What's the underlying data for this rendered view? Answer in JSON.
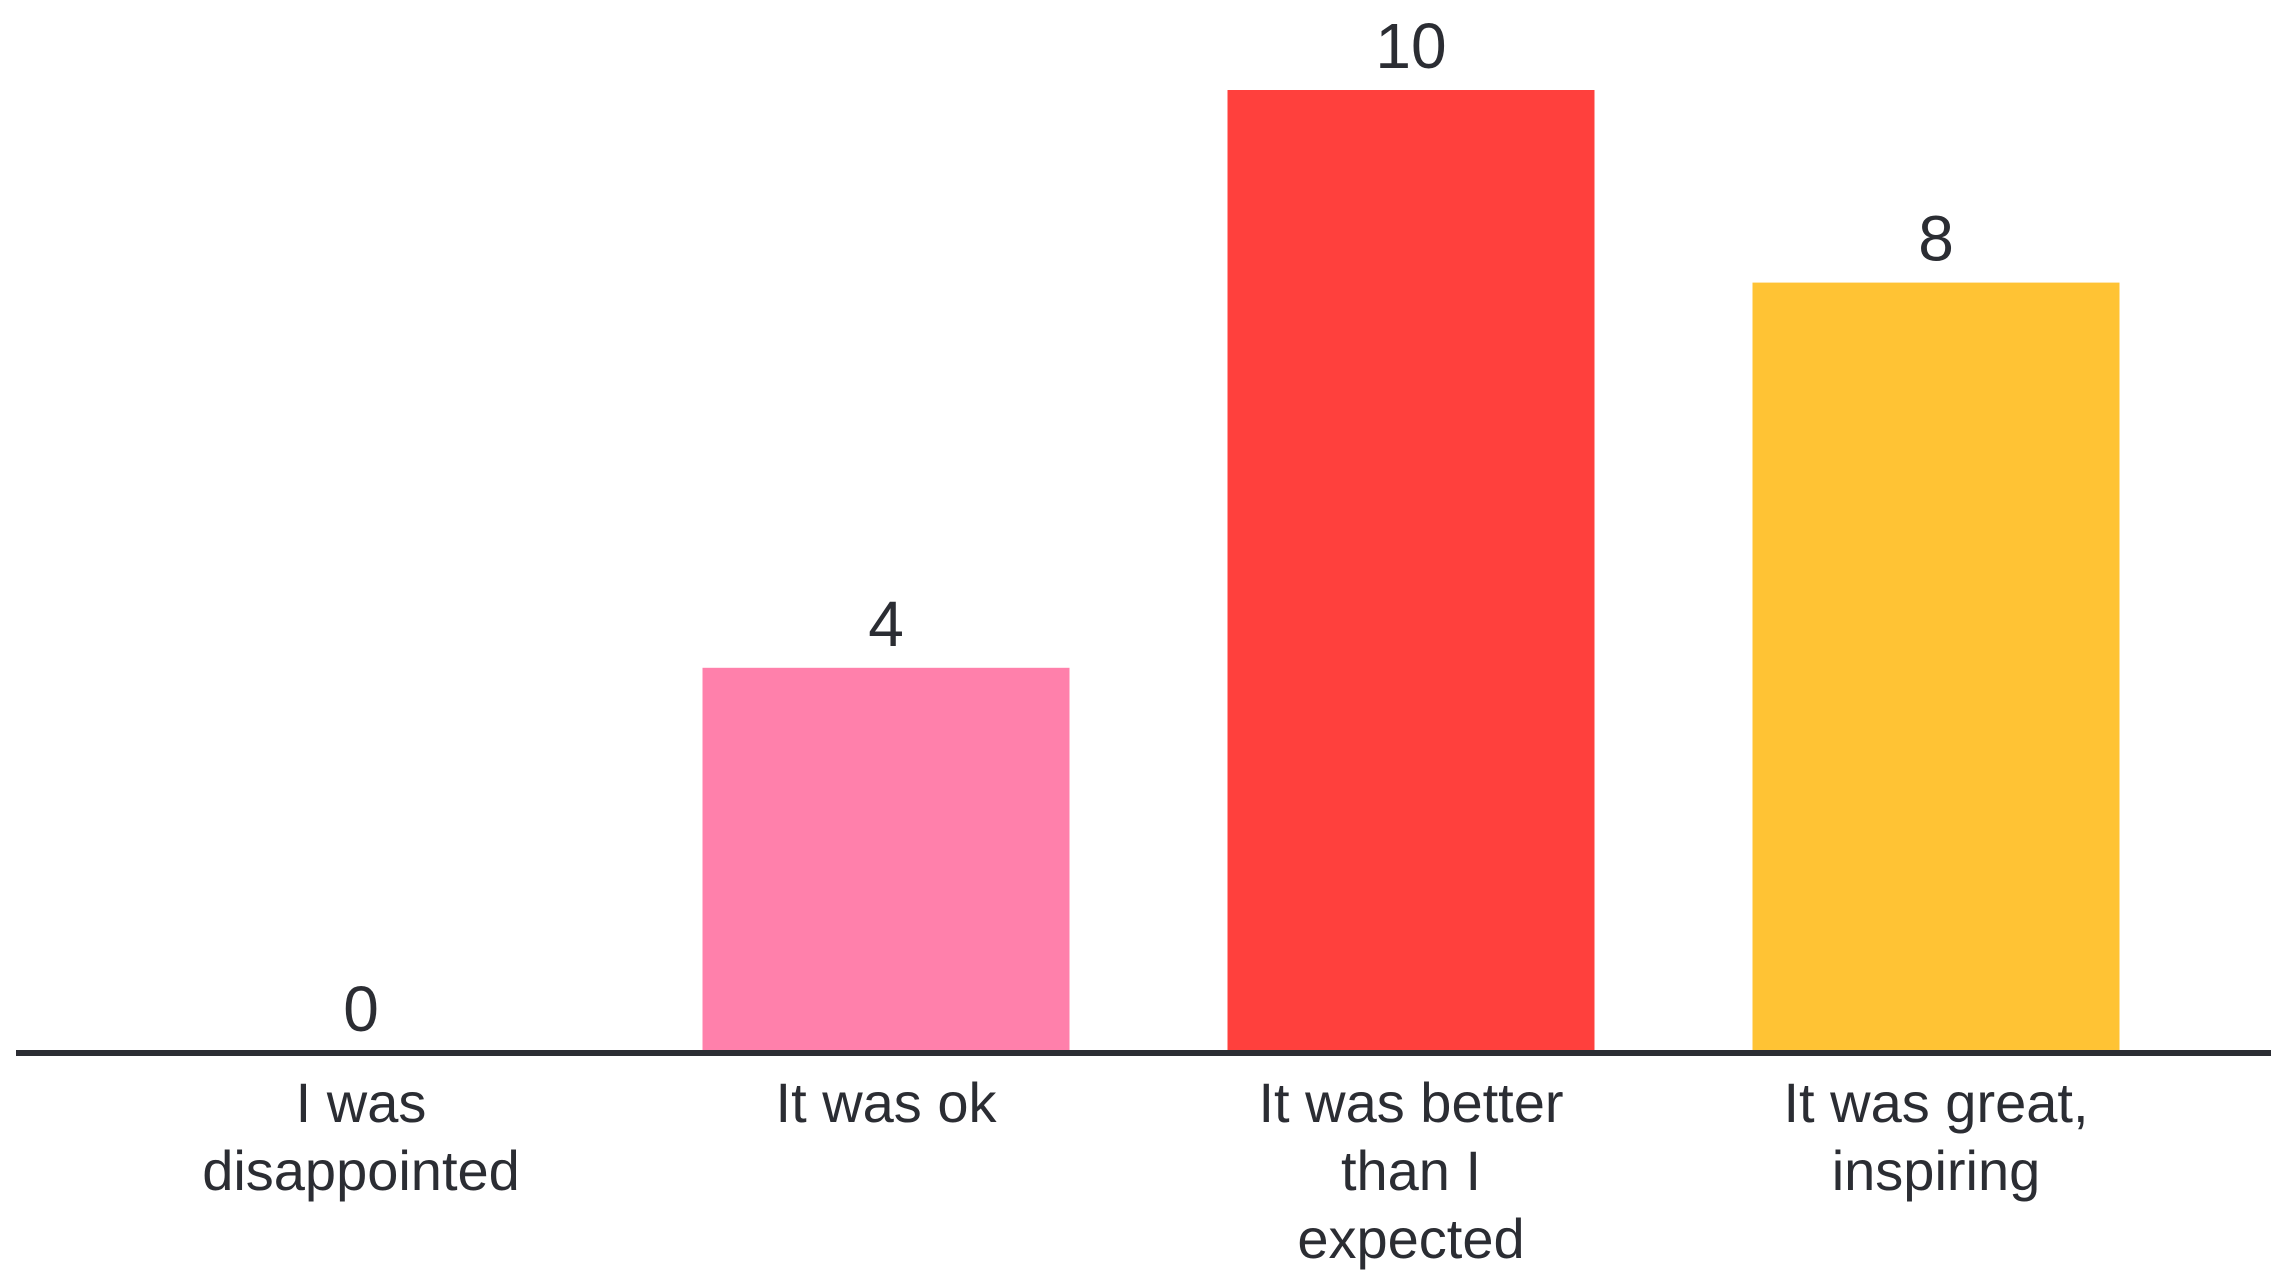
{
  "chart_data": {
    "type": "bar",
    "categories": [
      [
        "I was",
        "disappointed"
      ],
      [
        "It was ok"
      ],
      [
        "It was better",
        "than I",
        "expected"
      ],
      [
        "It was great,",
        "inspiring"
      ]
    ],
    "values": [
      0,
      4,
      10,
      8
    ],
    "colors": [
      "#ff80ab",
      "#ff80ab",
      "#ff403d",
      "#ffc334"
    ],
    "axis_color": "#2b2d33",
    "title": "",
    "xlabel": "",
    "ylabel": "",
    "ylim": [
      0,
      10
    ],
    "grid": false
  }
}
